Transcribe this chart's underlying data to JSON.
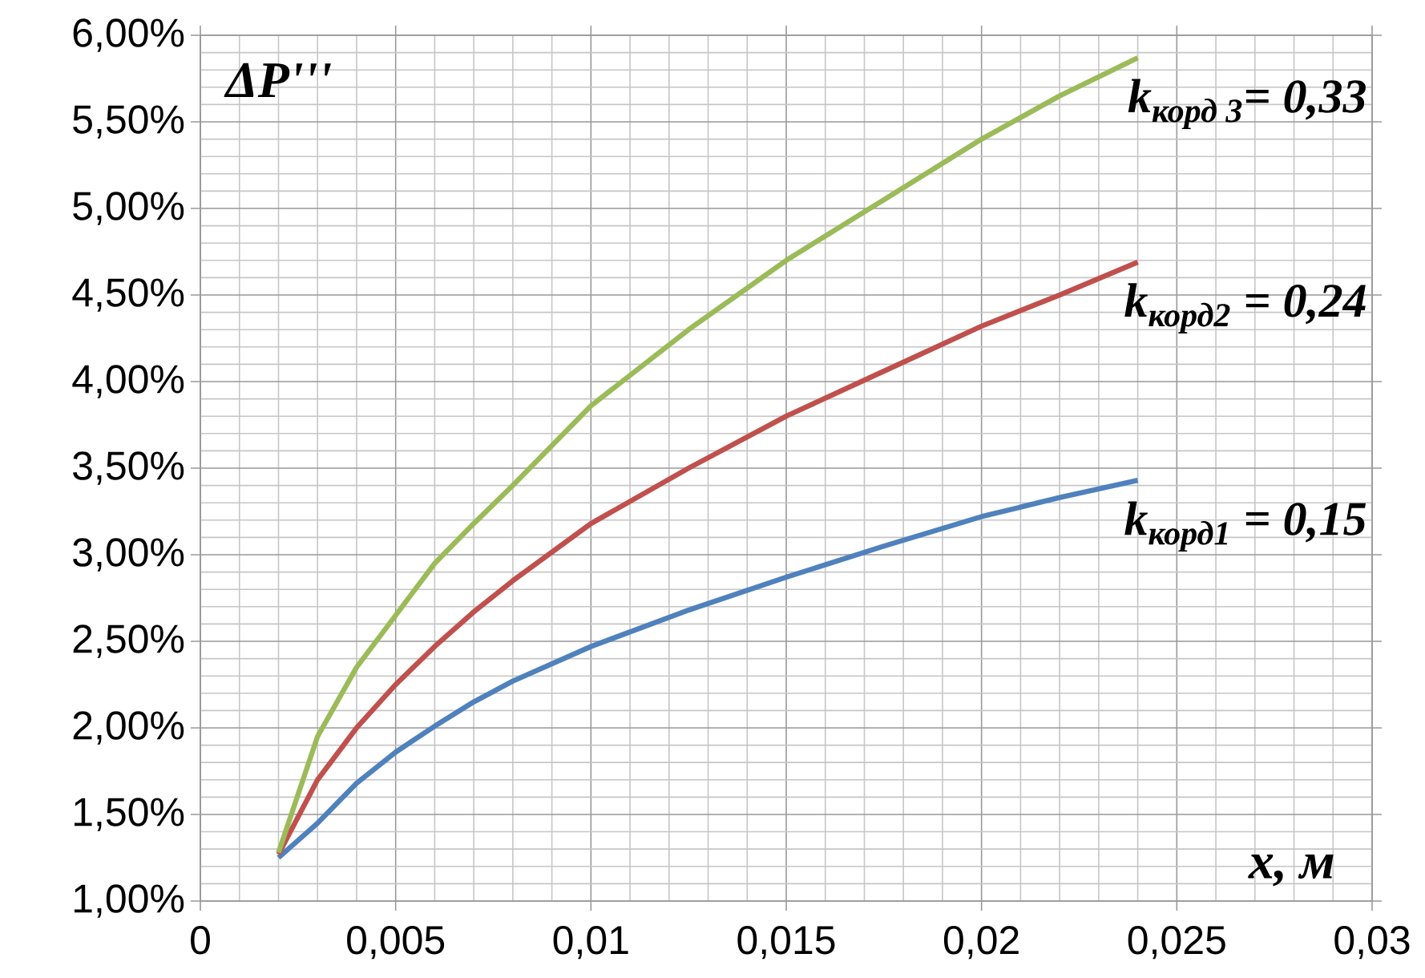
{
  "chart_data": {
    "type": "line",
    "ylabel": "ΔP'''",
    "xlabel": "x, м",
    "x": [
      0.002,
      0.003,
      0.004,
      0.005,
      0.006,
      0.007,
      0.008,
      0.01,
      0.0125,
      0.015,
      0.0175,
      0.02,
      0.022,
      0.024
    ],
    "series": [
      {
        "name": "k$_{корд1}$ = 0,15",
        "color": "#4f81bd",
        "values": [
          1.25,
          1.45,
          1.68,
          1.86,
          2.01,
          2.15,
          2.27,
          2.47,
          2.68,
          2.87,
          3.05,
          3.22,
          3.33,
          3.43
        ]
      },
      {
        "name": "k$_{корд2}$ = 0,24",
        "color": "#c0504d",
        "values": [
          1.27,
          1.7,
          2.0,
          2.25,
          2.47,
          2.67,
          2.85,
          3.18,
          3.5,
          3.8,
          4.06,
          4.32,
          4.5,
          4.69
        ]
      },
      {
        "name": "k$_{корд 3}$= 0,33",
        "color": "#9bbb59",
        "values": [
          1.28,
          1.95,
          2.35,
          2.65,
          2.95,
          3.18,
          3.4,
          3.86,
          4.3,
          4.7,
          5.05,
          5.4,
          5.65,
          5.87
        ]
      }
    ],
    "xlim": [
      0,
      0.03
    ],
    "ylim": [
      1,
      6
    ],
    "xticks": [
      {
        "value": 0,
        "label": "0"
      },
      {
        "value": 0.005,
        "label": "0,005"
      },
      {
        "value": 0.01,
        "label": "0,01"
      },
      {
        "value": 0.015,
        "label": "0,015"
      },
      {
        "value": 0.02,
        "label": "0,02"
      },
      {
        "value": 0.025,
        "label": "0,025"
      },
      {
        "value": 0.03,
        "label": "0,03"
      }
    ],
    "yticks": [
      {
        "value": 1,
        "label": "1,00%"
      },
      {
        "value": 1.5,
        "label": "1,50%"
      },
      {
        "value": 2,
        "label": "2,00%"
      },
      {
        "value": 2.5,
        "label": "2,50%"
      },
      {
        "value": 3,
        "label": "3,00%"
      },
      {
        "value": 3.5,
        "label": "3,50%"
      },
      {
        "value": 4,
        "label": "4,00%"
      },
      {
        "value": 4.5,
        "label": "4,50%"
      },
      {
        "value": 5,
        "label": "5,00%"
      },
      {
        "value": 5.5,
        "label": "5,50%"
      },
      {
        "value": 6,
        "label": "6,00%"
      }
    ],
    "grid": true
  }
}
